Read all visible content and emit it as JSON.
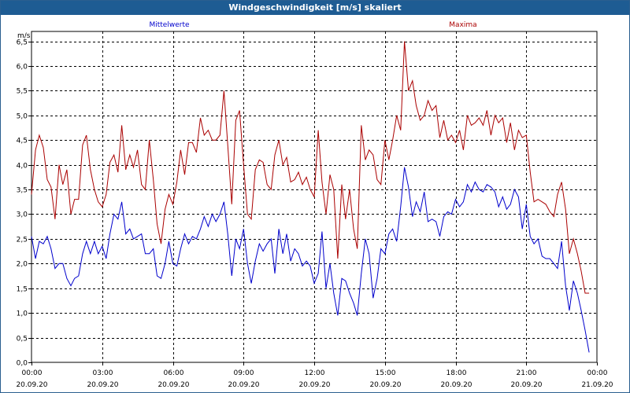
{
  "window": {
    "title": "Windgeschwindigkeit [m/s] skaliert"
  },
  "chart_data": {
    "type": "line",
    "title": "Windgeschwindigkeit [m/s] skaliert",
    "ylabel": "m/s",
    "xlabel": "",
    "ylim": [
      0,
      6.7
    ],
    "yticks": [
      "0,0",
      "0,5",
      "1,0",
      "1,5",
      "2,0",
      "2,5",
      "3,0",
      "3,5",
      "4,0",
      "4,5",
      "5,0",
      "5,5",
      "6,0",
      "6,5"
    ],
    "xticks": [
      {
        "time": "00:00",
        "date": "20.09.20"
      },
      {
        "time": "03:00",
        "date": "20.09.20"
      },
      {
        "time": "06:00",
        "date": "20.09.20"
      },
      {
        "time": "09:00",
        "date": "20.09.20"
      },
      {
        "time": "12:00",
        "date": "20.09.20"
      },
      {
        "time": "15:00",
        "date": "20.09.20"
      },
      {
        "time": "18:00",
        "date": "20.09.20"
      },
      {
        "time": "21:00",
        "date": "20.09.20"
      },
      {
        "time": "00:00",
        "date": "21.09.20"
      }
    ],
    "x_unit": "hours",
    "grid": true,
    "series": [
      {
        "name": "Mittelwerte",
        "color": "#0000cc",
        "points": [
          [
            0.0,
            2.55
          ],
          [
            0.17,
            2.1
          ],
          [
            0.33,
            2.45
          ],
          [
            0.5,
            2.4
          ],
          [
            0.67,
            2.55
          ],
          [
            0.83,
            2.3
          ],
          [
            1.0,
            1.9
          ],
          [
            1.17,
            2.0
          ],
          [
            1.33,
            2.0
          ],
          [
            1.5,
            1.7
          ],
          [
            1.67,
            1.55
          ],
          [
            1.83,
            1.7
          ],
          [
            2.0,
            1.75
          ],
          [
            2.17,
            2.2
          ],
          [
            2.33,
            2.45
          ],
          [
            2.5,
            2.2
          ],
          [
            2.67,
            2.45
          ],
          [
            2.83,
            2.2
          ],
          [
            3.0,
            2.35
          ],
          [
            3.17,
            2.1
          ],
          [
            3.33,
            2.6
          ],
          [
            3.5,
            3.0
          ],
          [
            3.67,
            2.9
          ],
          [
            3.83,
            3.25
          ],
          [
            4.0,
            2.6
          ],
          [
            4.17,
            2.7
          ],
          [
            4.33,
            2.5
          ],
          [
            4.5,
            2.55
          ],
          [
            4.67,
            2.6
          ],
          [
            4.83,
            2.2
          ],
          [
            5.0,
            2.2
          ],
          [
            5.17,
            2.3
          ],
          [
            5.33,
            1.75
          ],
          [
            5.5,
            1.7
          ],
          [
            5.67,
            2.0
          ],
          [
            5.83,
            2.45
          ],
          [
            6.0,
            2.0
          ],
          [
            6.17,
            1.95
          ],
          [
            6.33,
            2.3
          ],
          [
            6.5,
            2.6
          ],
          [
            6.67,
            2.4
          ],
          [
            6.83,
            2.55
          ],
          [
            7.0,
            2.5
          ],
          [
            7.17,
            2.7
          ],
          [
            7.33,
            2.95
          ],
          [
            7.5,
            2.75
          ],
          [
            7.67,
            3.0
          ],
          [
            7.83,
            2.85
          ],
          [
            8.0,
            3.0
          ],
          [
            8.17,
            3.25
          ],
          [
            8.33,
            2.6
          ],
          [
            8.5,
            1.75
          ],
          [
            8.67,
            2.5
          ],
          [
            8.83,
            2.3
          ],
          [
            9.0,
            2.7
          ],
          [
            9.17,
            2.0
          ],
          [
            9.33,
            1.6
          ],
          [
            9.5,
            2.05
          ],
          [
            9.67,
            2.4
          ],
          [
            9.83,
            2.25
          ],
          [
            10.0,
            2.4
          ],
          [
            10.17,
            2.5
          ],
          [
            10.33,
            1.8
          ],
          [
            10.5,
            2.7
          ],
          [
            10.67,
            2.2
          ],
          [
            10.83,
            2.6
          ],
          [
            11.0,
            2.05
          ],
          [
            11.17,
            2.3
          ],
          [
            11.33,
            2.2
          ],
          [
            11.5,
            1.95
          ],
          [
            11.67,
            2.05
          ],
          [
            11.83,
            1.95
          ],
          [
            12.0,
            1.6
          ],
          [
            12.17,
            1.8
          ],
          [
            12.33,
            2.65
          ],
          [
            12.5,
            1.5
          ],
          [
            12.67,
            2.0
          ],
          [
            12.83,
            1.4
          ],
          [
            13.0,
            0.95
          ],
          [
            13.17,
            1.7
          ],
          [
            13.33,
            1.65
          ],
          [
            13.5,
            1.4
          ],
          [
            13.67,
            1.2
          ],
          [
            13.83,
            0.95
          ],
          [
            14.0,
            1.8
          ],
          [
            14.17,
            2.5
          ],
          [
            14.33,
            2.2
          ],
          [
            14.5,
            1.3
          ],
          [
            14.67,
            1.7
          ],
          [
            14.83,
            2.3
          ],
          [
            15.0,
            2.2
          ],
          [
            15.17,
            2.6
          ],
          [
            15.33,
            2.7
          ],
          [
            15.5,
            2.45
          ],
          [
            15.67,
            3.15
          ],
          [
            15.83,
            3.95
          ],
          [
            16.0,
            3.55
          ],
          [
            16.17,
            2.95
          ],
          [
            16.33,
            3.25
          ],
          [
            16.5,
            3.05
          ],
          [
            16.67,
            3.45
          ],
          [
            16.83,
            2.85
          ],
          [
            17.0,
            2.9
          ],
          [
            17.17,
            2.85
          ],
          [
            17.33,
            2.55
          ],
          [
            17.5,
            2.95
          ],
          [
            17.67,
            3.05
          ],
          [
            17.83,
            3.0
          ],
          [
            18.0,
            3.3
          ],
          [
            18.17,
            3.15
          ],
          [
            18.33,
            3.25
          ],
          [
            18.5,
            3.6
          ],
          [
            18.67,
            3.45
          ],
          [
            18.83,
            3.65
          ],
          [
            19.0,
            3.5
          ],
          [
            19.17,
            3.45
          ],
          [
            19.33,
            3.6
          ],
          [
            19.5,
            3.55
          ],
          [
            19.67,
            3.45
          ],
          [
            19.83,
            3.15
          ],
          [
            20.0,
            3.35
          ],
          [
            20.17,
            3.1
          ],
          [
            20.33,
            3.2
          ],
          [
            20.5,
            3.5
          ],
          [
            20.67,
            3.35
          ],
          [
            20.83,
            2.7
          ],
          [
            21.0,
            3.2
          ],
          [
            21.17,
            2.55
          ],
          [
            21.33,
            2.4
          ],
          [
            21.5,
            2.5
          ],
          [
            21.67,
            2.15
          ],
          [
            21.83,
            2.1
          ],
          [
            22.0,
            2.1
          ],
          [
            22.17,
            2.0
          ],
          [
            22.33,
            1.9
          ],
          [
            22.5,
            2.45
          ],
          [
            22.67,
            1.55
          ],
          [
            22.83,
            1.05
          ],
          [
            23.0,
            1.65
          ],
          [
            23.17,
            1.4
          ],
          [
            23.33,
            1.05
          ],
          [
            23.5,
            0.65
          ],
          [
            23.67,
            0.2
          ]
        ]
      },
      {
        "name": "Maxima",
        "color": "#aa0000",
        "points": [
          [
            0.0,
            3.4
          ],
          [
            0.17,
            4.3
          ],
          [
            0.33,
            4.6
          ],
          [
            0.5,
            4.35
          ],
          [
            0.67,
            3.7
          ],
          [
            0.83,
            3.55
          ],
          [
            1.0,
            2.9
          ],
          [
            1.17,
            4.0
          ],
          [
            1.33,
            3.6
          ],
          [
            1.5,
            3.9
          ],
          [
            1.67,
            3.0
          ],
          [
            1.83,
            3.3
          ],
          [
            2.0,
            3.3
          ],
          [
            2.17,
            4.4
          ],
          [
            2.33,
            4.6
          ],
          [
            2.5,
            3.9
          ],
          [
            2.67,
            3.5
          ],
          [
            2.83,
            3.25
          ],
          [
            3.0,
            3.15
          ],
          [
            3.17,
            3.4
          ],
          [
            3.33,
            4.05
          ],
          [
            3.5,
            4.2
          ],
          [
            3.67,
            3.85
          ],
          [
            3.83,
            4.8
          ],
          [
            4.0,
            3.9
          ],
          [
            4.17,
            4.2
          ],
          [
            4.33,
            3.95
          ],
          [
            4.5,
            4.3
          ],
          [
            4.67,
            3.6
          ],
          [
            4.83,
            3.5
          ],
          [
            5.0,
            4.5
          ],
          [
            5.17,
            3.7
          ],
          [
            5.33,
            2.8
          ],
          [
            5.5,
            2.4
          ],
          [
            5.67,
            3.1
          ],
          [
            5.83,
            3.4
          ],
          [
            6.0,
            3.2
          ],
          [
            6.17,
            3.65
          ],
          [
            6.33,
            4.3
          ],
          [
            6.5,
            3.8
          ],
          [
            6.67,
            4.45
          ],
          [
            6.83,
            4.45
          ],
          [
            7.0,
            4.25
          ],
          [
            7.17,
            4.95
          ],
          [
            7.33,
            4.6
          ],
          [
            7.5,
            4.7
          ],
          [
            7.67,
            4.5
          ],
          [
            7.83,
            4.5
          ],
          [
            8.0,
            4.6
          ],
          [
            8.17,
            5.5
          ],
          [
            8.33,
            4.4
          ],
          [
            8.5,
            3.2
          ],
          [
            8.67,
            4.9
          ],
          [
            8.83,
            5.1
          ],
          [
            9.0,
            4.0
          ],
          [
            9.17,
            3.0
          ],
          [
            9.33,
            2.9
          ],
          [
            9.5,
            3.9
          ],
          [
            9.67,
            4.1
          ],
          [
            9.83,
            4.05
          ],
          [
            10.0,
            3.6
          ],
          [
            10.17,
            3.5
          ],
          [
            10.33,
            4.2
          ],
          [
            10.5,
            4.5
          ],
          [
            10.67,
            4.0
          ],
          [
            10.83,
            4.15
          ],
          [
            11.0,
            3.65
          ],
          [
            11.17,
            3.7
          ],
          [
            11.33,
            3.85
          ],
          [
            11.5,
            3.6
          ],
          [
            11.67,
            3.75
          ],
          [
            11.83,
            3.5
          ],
          [
            12.0,
            3.35
          ],
          [
            12.17,
            4.7
          ],
          [
            12.33,
            3.65
          ],
          [
            12.5,
            3.0
          ],
          [
            12.67,
            3.8
          ],
          [
            12.83,
            3.5
          ],
          [
            13.0,
            2.1
          ],
          [
            13.17,
            3.6
          ],
          [
            13.33,
            2.9
          ],
          [
            13.5,
            3.5
          ],
          [
            13.67,
            2.7
          ],
          [
            13.83,
            2.3
          ],
          [
            14.0,
            4.8
          ],
          [
            14.17,
            4.1
          ],
          [
            14.33,
            4.3
          ],
          [
            14.5,
            4.2
          ],
          [
            14.67,
            3.7
          ],
          [
            14.83,
            3.6
          ],
          [
            15.0,
            4.5
          ],
          [
            15.17,
            4.1
          ],
          [
            15.33,
            4.5
          ],
          [
            15.5,
            5.0
          ],
          [
            15.67,
            4.7
          ],
          [
            15.83,
            6.5
          ],
          [
            16.0,
            5.5
          ],
          [
            16.17,
            5.7
          ],
          [
            16.33,
            5.2
          ],
          [
            16.5,
            4.9
          ],
          [
            16.67,
            5.0
          ],
          [
            16.83,
            5.3
          ],
          [
            17.0,
            5.1
          ],
          [
            17.17,
            5.2
          ],
          [
            17.33,
            4.55
          ],
          [
            17.5,
            4.9
          ],
          [
            17.67,
            4.5
          ],
          [
            17.83,
            4.6
          ],
          [
            18.0,
            4.45
          ],
          [
            18.17,
            4.7
          ],
          [
            18.33,
            4.3
          ],
          [
            18.5,
            5.0
          ],
          [
            18.67,
            4.8
          ],
          [
            18.83,
            4.85
          ],
          [
            19.0,
            4.95
          ],
          [
            19.17,
            4.8
          ],
          [
            19.33,
            5.1
          ],
          [
            19.5,
            4.6
          ],
          [
            19.67,
            5.0
          ],
          [
            19.83,
            4.85
          ],
          [
            20.0,
            4.95
          ],
          [
            20.17,
            4.45
          ],
          [
            20.33,
            4.85
          ],
          [
            20.5,
            4.3
          ],
          [
            20.67,
            4.7
          ],
          [
            20.83,
            4.55
          ],
          [
            21.0,
            4.6
          ],
          [
            21.17,
            3.85
          ],
          [
            21.33,
            3.25
          ],
          [
            21.5,
            3.3
          ],
          [
            21.67,
            3.25
          ],
          [
            21.83,
            3.2
          ],
          [
            22.0,
            3.05
          ],
          [
            22.17,
            2.95
          ],
          [
            22.33,
            3.4
          ],
          [
            22.5,
            3.65
          ],
          [
            22.67,
            3.1
          ],
          [
            22.83,
            2.2
          ],
          [
            23.0,
            2.5
          ],
          [
            23.17,
            2.2
          ],
          [
            23.33,
            1.85
          ],
          [
            23.5,
            1.4
          ],
          [
            23.67,
            1.4
          ]
        ]
      }
    ]
  }
}
